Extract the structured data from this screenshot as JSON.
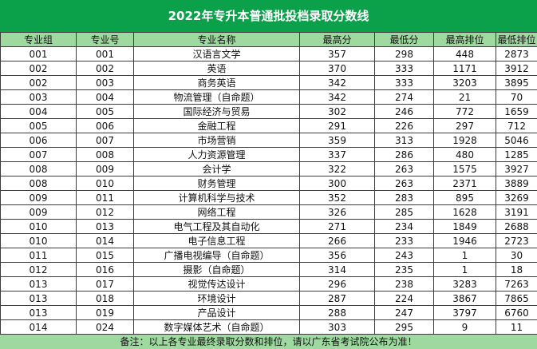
{
  "title": "2022年专升本普通批投档录取分数线",
  "headers": [
    "专业组",
    "专业号",
    "专业名称",
    "最高分",
    "最低分",
    "最高排位",
    "最低排位"
  ],
  "rows": [
    [
      "001",
      "001",
      "汉语言文学",
      "357",
      "298",
      "448",
      "2873"
    ],
    [
      "002",
      "002",
      "英语",
      "370",
      "333",
      "1171",
      "3912"
    ],
    [
      "002",
      "003",
      "商务英语",
      "342",
      "333",
      "3203",
      "3895"
    ],
    [
      "003",
      "004",
      "物流管理（自命题）",
      "342",
      "274",
      "21",
      "70"
    ],
    [
      "004",
      "005",
      "国际经济与贸易",
      "302",
      "246",
      "772",
      "1659"
    ],
    [
      "005",
      "006",
      "金融工程",
      "291",
      "226",
      "297",
      "712"
    ],
    [
      "006",
      "007",
      "市场营销",
      "359",
      "313",
      "1928",
      "5046"
    ],
    [
      "007",
      "008",
      "人力资源管理",
      "337",
      "286",
      "480",
      "1285"
    ],
    [
      "008",
      "009",
      "会计学",
      "322",
      "263",
      "1575",
      "3927"
    ],
    [
      "008",
      "010",
      "财务管理",
      "300",
      "263",
      "2371",
      "3889"
    ],
    [
      "009",
      "011",
      "计算机科学与技术",
      "352",
      "283",
      "895",
      "3269"
    ],
    [
      "009",
      "012",
      "网络工程",
      "326",
      "285",
      "1628",
      "3191"
    ],
    [
      "010",
      "013",
      "电气工程及其自动化",
      "271",
      "234",
      "1849",
      "2688"
    ],
    [
      "010",
      "014",
      "电子信息工程",
      "266",
      "233",
      "1946",
      "2723"
    ],
    [
      "011",
      "015",
      "广播电视编导（自命题）",
      "356",
      "243",
      "1",
      "30"
    ],
    [
      "012",
      "016",
      "摄影（自命题）",
      "314",
      "235",
      "1",
      "18"
    ],
    [
      "013",
      "017",
      "视觉传达设计",
      "296",
      "238",
      "3283",
      "7263"
    ],
    [
      "013",
      "018",
      "环境设计",
      "287",
      "224",
      "3867",
      "7865"
    ],
    [
      "013",
      "019",
      "产品设计",
      "288",
      "247",
      "3797",
      "6760"
    ],
    [
      "014",
      "024",
      "数字媒体艺术（自命题）",
      "303",
      "295",
      "9",
      "11"
    ]
  ],
  "footer_note": "备注：以上各专业最终录取分数和排位，请以广东省考试院公布为准！",
  "colors": {
    "title_bg": "#0aa14a",
    "header_bg": "#9ed9a0",
    "footer_bg": "#9ed9a0",
    "border": "#3c3c3c"
  }
}
